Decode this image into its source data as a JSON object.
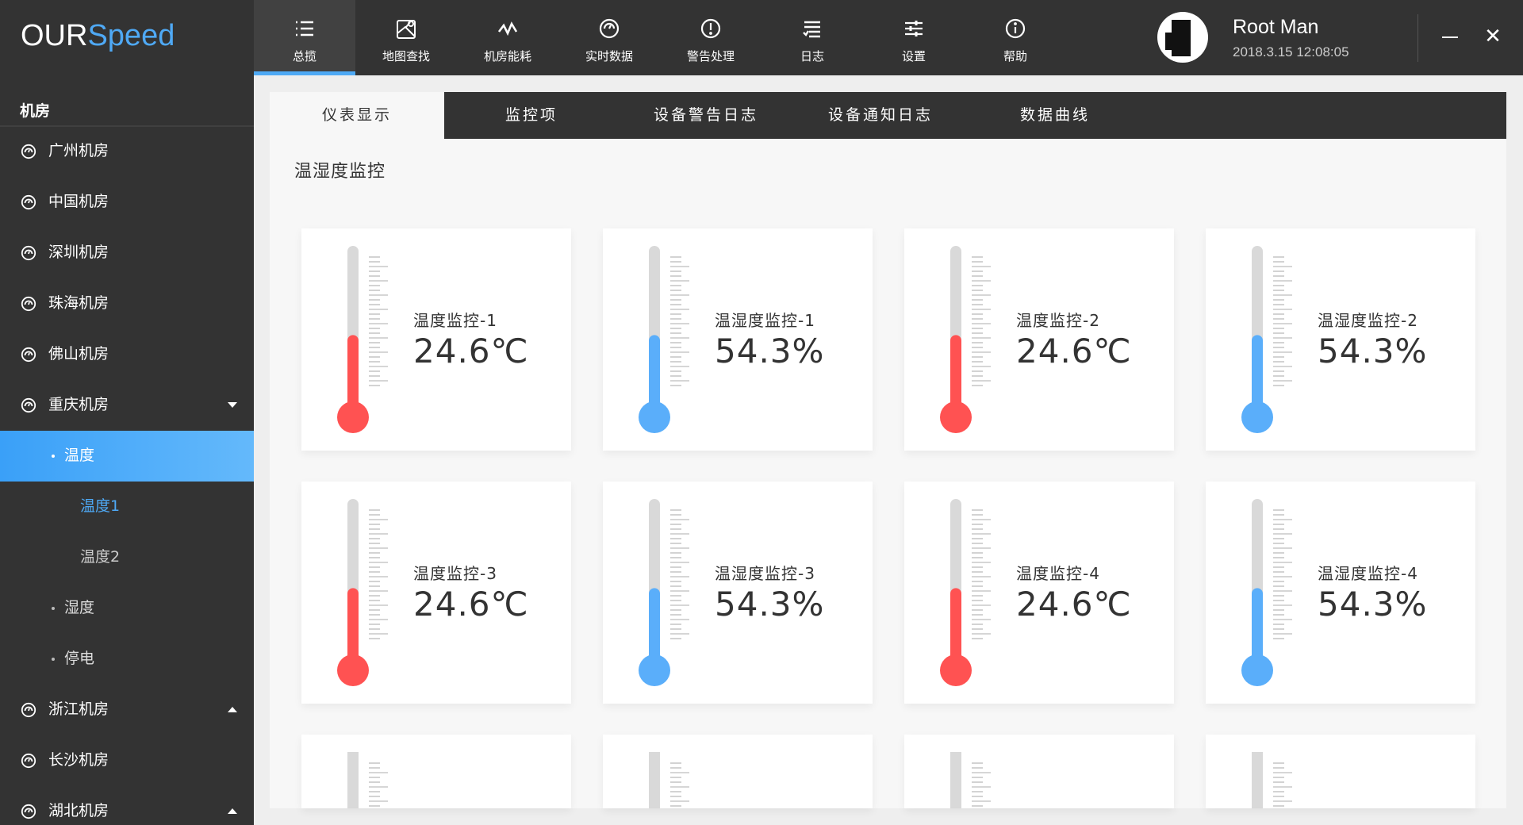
{
  "app": {
    "logo_main": "OUR",
    "logo_accent": "Speed"
  },
  "nav": [
    {
      "label": "总揽",
      "icon": "list-icon",
      "active": true
    },
    {
      "label": "地图查找",
      "icon": "map-icon"
    },
    {
      "label": "机房能耗",
      "icon": "wave-icon"
    },
    {
      "label": "实时数据",
      "icon": "gauge-icon"
    },
    {
      "label": "警告处理",
      "icon": "alert-icon"
    },
    {
      "label": "日志",
      "icon": "log-icon"
    },
    {
      "label": "设置",
      "icon": "sliders-icon"
    },
    {
      "label": "帮助",
      "icon": "info-icon"
    }
  ],
  "user": {
    "name": "Root Man",
    "time": "2018.3.15 12:08:05"
  },
  "window": {
    "minimize": "—",
    "close": "✕"
  },
  "sidebar": {
    "heading": "机房",
    "items": [
      {
        "label": "广州机房",
        "type": "room"
      },
      {
        "label": "中国机房",
        "type": "room"
      },
      {
        "label": "深圳机房",
        "type": "room"
      },
      {
        "label": "珠海机房",
        "type": "room"
      },
      {
        "label": "佛山机房",
        "type": "room"
      },
      {
        "label": "重庆机房",
        "type": "room",
        "arrow": "down"
      },
      {
        "label": "温度",
        "type": "sub",
        "active": true
      },
      {
        "label": "温度1",
        "type": "leaf",
        "selected": true
      },
      {
        "label": "温度2",
        "type": "leaf"
      },
      {
        "label": "湿度",
        "type": "sub"
      },
      {
        "label": "停电",
        "type": "sub"
      },
      {
        "label": "浙江机房",
        "type": "room",
        "arrow": "up"
      },
      {
        "label": "长沙机房",
        "type": "room"
      },
      {
        "label": "湖北机房",
        "type": "room",
        "arrow": "up"
      }
    ]
  },
  "tabs": [
    {
      "label": "仪表显示",
      "active": true
    },
    {
      "label": "监控项"
    },
    {
      "label": "设备警告日志"
    },
    {
      "label": "设备通知日志"
    },
    {
      "label": "数据曲线"
    }
  ],
  "section_title": "温湿度监控",
  "colors": {
    "accent": "#4ea9f5",
    "temp": "#ff5252",
    "humidity": "#5aaefa",
    "tube": "#d9d9d9",
    "dark": "#333333"
  },
  "gauges": [
    {
      "label": "温度监控-1",
      "value": "24.6℃",
      "kind": "temp",
      "level": 0.46
    },
    {
      "label": "温湿度监控-1",
      "value": "54.3%",
      "kind": "humidity",
      "level": 0.46
    },
    {
      "label": "温度监控-2",
      "value": "24.6℃",
      "kind": "temp",
      "level": 0.46
    },
    {
      "label": "温湿度监控-2",
      "value": "54.3%",
      "kind": "humidity",
      "level": 0.46
    },
    {
      "label": "温度监控-3",
      "value": "24.6℃",
      "kind": "temp",
      "level": 0.46
    },
    {
      "label": "温湿度监控-3",
      "value": "54.3%",
      "kind": "humidity",
      "level": 0.46
    },
    {
      "label": "温度监控-4",
      "value": "24.6℃",
      "kind": "temp",
      "level": 0.46
    },
    {
      "label": "温湿度监控-4",
      "value": "54.3%",
      "kind": "humidity",
      "level": 0.46
    },
    {
      "label": "",
      "value": "",
      "kind": "temp",
      "level": 0
    },
    {
      "label": "",
      "value": "",
      "kind": "humidity",
      "level": 0
    },
    {
      "label": "",
      "value": "",
      "kind": "temp",
      "level": 0
    },
    {
      "label": "",
      "value": "",
      "kind": "humidity",
      "level": 0
    }
  ]
}
